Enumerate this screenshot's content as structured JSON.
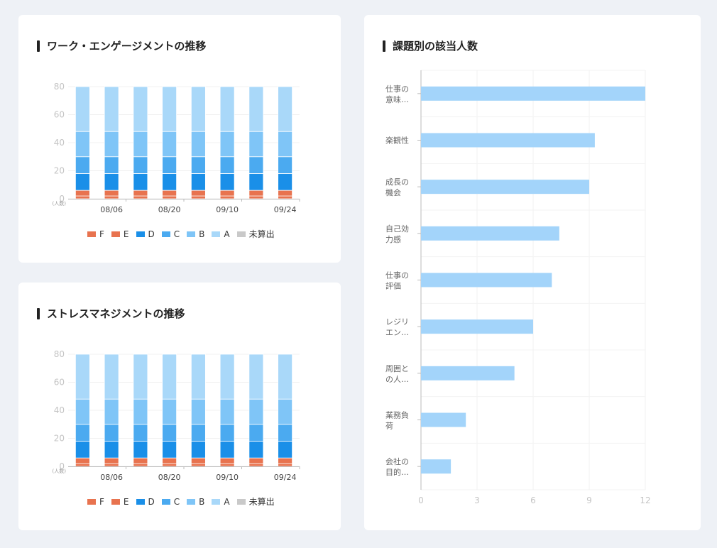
{
  "charts": [
    {
      "title": "ワーク・エンゲージメントの推移",
      "unit_label": "(人数)",
      "chart_data": {
        "type": "bar",
        "stacked": true,
        "bar_count": 8,
        "tick_labels": [
          "08/06",
          "08/20",
          "09/10",
          "09/24"
        ],
        "ylim": [
          0,
          80
        ],
        "yticks": [
          0,
          20,
          40,
          60,
          80
        ],
        "series": [
          {
            "name": "F",
            "color": "#e8734f",
            "values": [
              2,
              2,
              2,
              2,
              2,
              2,
              2,
              2
            ]
          },
          {
            "name": "E",
            "color": "#e8734f",
            "values": [
              4,
              4,
              4,
              4,
              4,
              4,
              4,
              4
            ]
          },
          {
            "name": "D",
            "color": "#1a8fe8",
            "values": [
              12,
              12,
              12,
              12,
              12,
              12,
              12,
              12
            ]
          },
          {
            "name": "C",
            "color": "#4baaf0",
            "values": [
              12,
              12,
              12,
              12,
              12,
              12,
              12,
              12
            ]
          },
          {
            "name": "B",
            "color": "#7fc5f7",
            "values": [
              18,
              18,
              18,
              18,
              18,
              18,
              18,
              18
            ]
          },
          {
            "name": "A",
            "color": "#a9d8f9",
            "values": [
              32,
              32,
              32,
              32,
              32,
              32,
              32,
              32
            ]
          },
          {
            "name": "未算出",
            "color": "#c9c9c9",
            "values": [
              0,
              0,
              0,
              0,
              0,
              0,
              0,
              0
            ]
          }
        ]
      }
    },
    {
      "title": "ストレスマネジメントの推移",
      "unit_label": "(人数)",
      "chart_data": {
        "type": "bar",
        "stacked": true,
        "bar_count": 8,
        "tick_labels": [
          "08/06",
          "08/20",
          "09/10",
          "09/24"
        ],
        "ylim": [
          0,
          80
        ],
        "yticks": [
          0,
          20,
          40,
          60,
          80
        ],
        "series": [
          {
            "name": "F",
            "color": "#e8734f",
            "values": [
              2,
              2,
              2,
              2,
              2,
              2,
              2,
              2
            ]
          },
          {
            "name": "E",
            "color": "#e8734f",
            "values": [
              4,
              4,
              4,
              4,
              4,
              4,
              4,
              4
            ]
          },
          {
            "name": "D",
            "color": "#1a8fe8",
            "values": [
              12,
              12,
              12,
              12,
              12,
              12,
              12,
              12
            ]
          },
          {
            "name": "C",
            "color": "#4baaf0",
            "values": [
              12,
              12,
              12,
              12,
              12,
              12,
              12,
              12
            ]
          },
          {
            "name": "B",
            "color": "#7fc5f7",
            "values": [
              18,
              18,
              18,
              18,
              18,
              18,
              18,
              18
            ]
          },
          {
            "name": "A",
            "color": "#a9d8f9",
            "values": [
              32,
              32,
              32,
              32,
              32,
              32,
              32,
              32
            ]
          },
          {
            "name": "未算出",
            "color": "#c9c9c9",
            "values": [
              0,
              0,
              0,
              0,
              0,
              0,
              0,
              0
            ]
          }
        ]
      }
    }
  ],
  "issues_chart": {
    "title": "課題別の該当人数",
    "chart_data": {
      "type": "bar",
      "orientation": "horizontal",
      "color": "#a3d4fa",
      "categories": [
        [
          "仕事の",
          "意味…"
        ],
        [
          "楽観性"
        ],
        [
          "成長の",
          "機会"
        ],
        [
          "自己効",
          "力感"
        ],
        [
          "仕事の",
          "評価"
        ],
        [
          "レジリ",
          "エン…"
        ],
        [
          "周囲と",
          "の人…"
        ],
        [
          "業務負",
          "荷"
        ],
        [
          "会社の",
          "目的…"
        ]
      ],
      "values": [
        12,
        9.3,
        9,
        7.4,
        7,
        6,
        5,
        2.4,
        1.6
      ],
      "xlim": [
        0,
        12
      ],
      "xticks": [
        0,
        3,
        6,
        9,
        12
      ]
    }
  }
}
